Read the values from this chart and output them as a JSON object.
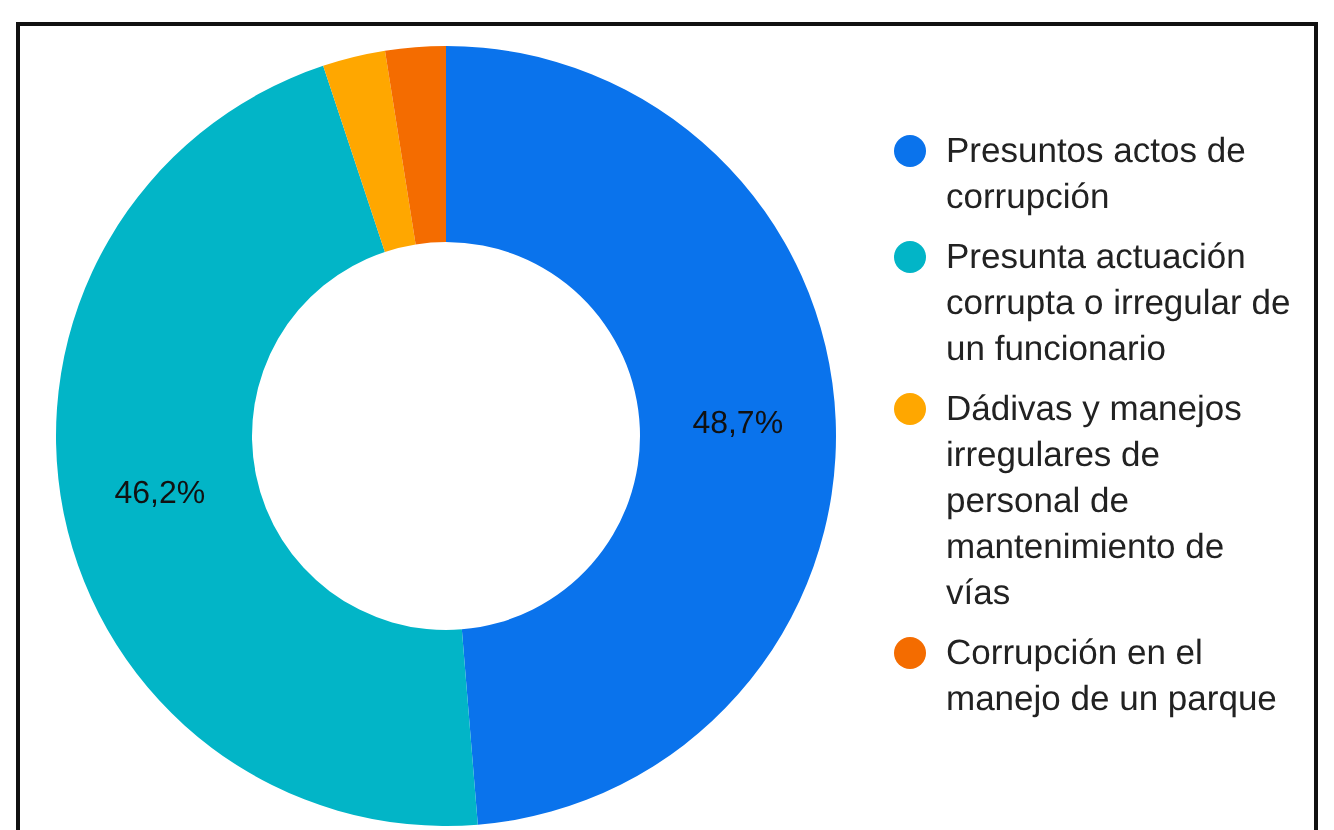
{
  "chart_data": {
    "type": "donut",
    "categories": [
      "Presuntos actos de corrupción",
      "Presunta actuación corrupta o irregular de un funcionario",
      "Dádivas y manejos irregulares de personal de mantenimiento de vías",
      "Corrupción en el manejo de un parque"
    ],
    "values": [
      48.7,
      46.2,
      2.6,
      2.5
    ],
    "colors": [
      "#0a73ec",
      "#02b5c7",
      "#ffa700",
      "#f46c00"
    ],
    "value_labels": [
      "48,7%",
      "46,2%",
      null,
      null
    ],
    "legend": "right"
  }
}
